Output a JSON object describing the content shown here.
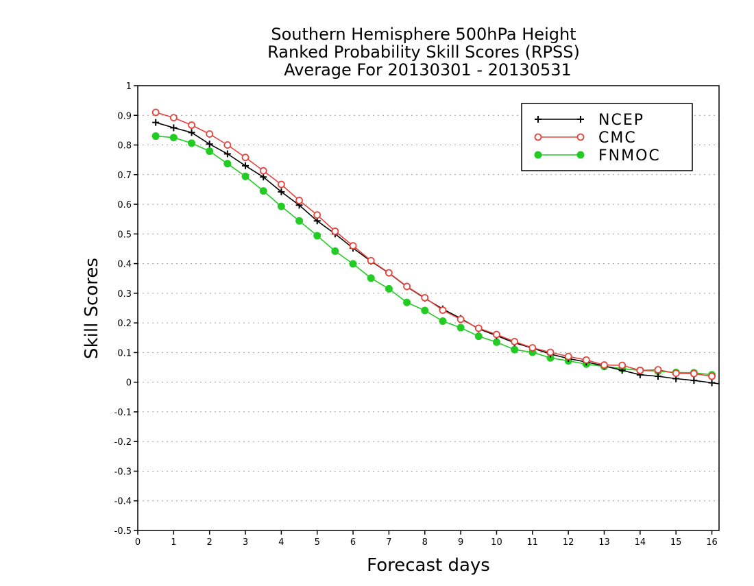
{
  "chart_data": {
    "type": "line",
    "title": [
      "Southern Hemisphere 500hPa Height",
      "Ranked Probability Skill Scores (RPSS)",
      "Average For 20130301 - 20130531"
    ],
    "xlabel": "Forecast days",
    "ylabel": "Skill Scores",
    "xlim": [
      0,
      16.2
    ],
    "ylim": [
      -0.5,
      1
    ],
    "xticks": [
      0,
      1,
      2,
      3,
      4,
      5,
      6,
      7,
      8,
      9,
      10,
      11,
      12,
      13,
      14,
      15,
      16
    ],
    "yticks": [
      -0.5,
      -0.4,
      -0.3,
      -0.2,
      -0.1,
      0,
      0.1,
      0.2,
      0.3,
      0.4,
      0.5,
      0.6,
      0.7,
      0.8,
      0.9,
      1
    ],
    "ytick_labels": [
      "-0.5",
      "-0.4",
      "-0.3",
      "-0.2",
      "-0.1",
      "0",
      "0.1",
      "0.2",
      "0.3",
      "0.4",
      "0.5",
      "0.6",
      "0.7",
      "0.8",
      "0.9",
      "1"
    ],
    "grid": true,
    "legend_position": "top-right",
    "x": [
      0.5,
      1,
      1.5,
      2,
      2.5,
      3,
      3.5,
      4,
      4.5,
      5,
      5.5,
      6,
      6.5,
      7,
      7.5,
      8,
      8.5,
      9,
      9.5,
      10,
      10.5,
      11,
      11.5,
      12,
      12.5,
      13,
      13.5,
      14,
      14.5,
      15,
      15.5,
      16
    ],
    "series": [
      {
        "name": "NCEP",
        "color": "#000000",
        "marker": "plus",
        "values": [
          0.876,
          0.858,
          0.842,
          0.803,
          0.77,
          0.73,
          0.692,
          0.642,
          0.597,
          0.544,
          0.5,
          0.452,
          0.408,
          0.368,
          0.322,
          0.283,
          0.247,
          0.215,
          0.18,
          0.157,
          0.133,
          0.115,
          0.095,
          0.08,
          0.068,
          0.055,
          0.04,
          0.025,
          0.02,
          0.012,
          0.006,
          -0.002
        ]
      },
      {
        "name": "CMC",
        "color": "#e8423c",
        "marker": "open-circle",
        "values": [
          0.91,
          0.892,
          0.867,
          0.837,
          0.8,
          0.758,
          0.713,
          0.667,
          0.613,
          0.564,
          0.509,
          0.46,
          0.41,
          0.369,
          0.323,
          0.285,
          0.243,
          0.212,
          0.182,
          0.161,
          0.137,
          0.116,
          0.101,
          0.087,
          0.075,
          0.058,
          0.057,
          0.04,
          0.042,
          0.03,
          0.029,
          0.02
        ]
      },
      {
        "name": "FNMOC",
        "color": "#22cc22",
        "marker": "filled-circle",
        "values": [
          0.83,
          0.825,
          0.806,
          0.779,
          0.737,
          0.694,
          0.645,
          0.593,
          0.544,
          0.494,
          0.442,
          0.399,
          0.351,
          0.315,
          0.269,
          0.242,
          0.206,
          0.184,
          0.155,
          0.135,
          0.11,
          0.101,
          0.082,
          0.072,
          0.061,
          0.053,
          0.046,
          0.04,
          0.037,
          0.033,
          0.032,
          0.025
        ]
      }
    ]
  }
}
